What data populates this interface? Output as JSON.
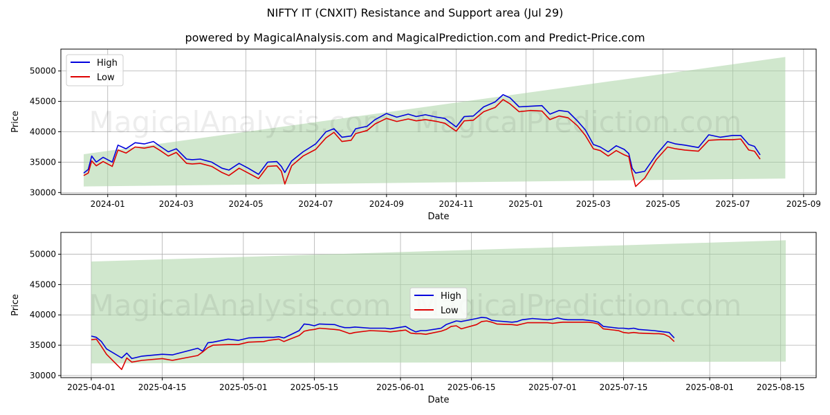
{
  "title": "NIFTY IT (CNXIT) Resistance and Support area (Jul 29)",
  "subtitle": "powered by MagicalAnalysis.com and MagicalPrediction.com and Predict-Price.com",
  "watermarks": [
    "MagicalAnalysis.com",
    "MagicalPrediction.com"
  ],
  "colors": {
    "high": "#0000dd",
    "low": "#dd0000",
    "band": "#a9d3a4",
    "grid": "#b0b0b0"
  },
  "chart_data": [
    {
      "type": "line",
      "xlabel": "Date",
      "ylabel": "Price",
      "xlim": [
        "2023-11-21",
        "2025-09-12"
      ],
      "ylim": [
        29700,
        53600
      ],
      "grid": true,
      "legend_placement": "upper left",
      "xticks": [
        "2024-01",
        "2024-03",
        "2024-05",
        "2024-07",
        "2024-09",
        "2024-11",
        "2025-01",
        "2025-03",
        "2025-05",
        "2025-07",
        "2025-09"
      ],
      "yticks": [
        30000,
        35000,
        40000,
        45000,
        50000
      ],
      "band": {
        "x": [
          "2023-12-11",
          "2025-08-16"
        ],
        "upper": [
          36300,
          52300
        ],
        "lower": [
          31000,
          32300
        ]
      },
      "series": [
        {
          "name": "High",
          "x": [
            "2023-12-11",
            "2023-12-15",
            "2023-12-18",
            "2023-12-22",
            "2023-12-28",
            "2024-01-05",
            "2024-01-10",
            "2024-01-17",
            "2024-01-25",
            "2024-02-02",
            "2024-02-10",
            "2024-02-16",
            "2024-02-23",
            "2024-03-01",
            "2024-03-10",
            "2024-03-15",
            "2024-03-22",
            "2024-04-01",
            "2024-04-10",
            "2024-04-16",
            "2024-04-25",
            "2024-05-03",
            "2024-05-12",
            "2024-05-20",
            "2024-05-28",
            "2024-06-01",
            "2024-06-04",
            "2024-06-10",
            "2024-06-20",
            "2024-07-01",
            "2024-07-10",
            "2024-07-17",
            "2024-07-24",
            "2024-08-01",
            "2024-08-05",
            "2024-08-15",
            "2024-08-22",
            "2024-09-01",
            "2024-09-10",
            "2024-09-20",
            "2024-09-27",
            "2024-10-05",
            "2024-10-15",
            "2024-10-22",
            "2024-11-01",
            "2024-11-08",
            "2024-11-16",
            "2024-11-25",
            "2024-12-05",
            "2024-12-12",
            "2024-12-18",
            "2024-12-26",
            "2025-01-05",
            "2025-01-15",
            "2025-01-22",
            "2025-01-30",
            "2025-02-07",
            "2025-02-15",
            "2025-02-22",
            "2025-03-01",
            "2025-03-07",
            "2025-03-14",
            "2025-03-21",
            "2025-03-28",
            "2025-04-01",
            "2025-04-04",
            "2025-04-07",
            "2025-04-15",
            "2025-04-25",
            "2025-05-05",
            "2025-05-12",
            "2025-05-20",
            "2025-06-01",
            "2025-06-10",
            "2025-06-20",
            "2025-07-01",
            "2025-07-08",
            "2025-07-15",
            "2025-07-20",
            "2025-07-25"
          ],
          "values": [
            33200,
            33800,
            36000,
            35000,
            35800,
            35000,
            37800,
            37200,
            38200,
            38000,
            38400,
            37600,
            36700,
            37200,
            35500,
            35400,
            35500,
            35000,
            34000,
            33700,
            34800,
            34000,
            33000,
            35000,
            35100,
            34300,
            33300,
            35200,
            36700,
            38000,
            40000,
            40500,
            39100,
            39300,
            40500,
            40900,
            42000,
            43000,
            42400,
            42900,
            42500,
            42800,
            42400,
            42200,
            40800,
            42500,
            42600,
            44100,
            44900,
            46100,
            45600,
            44100,
            44200,
            44300,
            42900,
            43500,
            43300,
            41800,
            40300,
            37900,
            37500,
            36700,
            37700,
            37100,
            36400,
            34000,
            33200,
            33500,
            36200,
            38400,
            38000,
            37800,
            37400,
            39500,
            39100,
            39400,
            39400,
            37900,
            37600,
            36200
          ]
        },
        {
          "name": "Low",
          "x": [
            "2023-12-11",
            "2023-12-15",
            "2023-12-18",
            "2023-12-22",
            "2023-12-28",
            "2024-01-05",
            "2024-01-10",
            "2024-01-17",
            "2024-01-25",
            "2024-02-02",
            "2024-02-10",
            "2024-02-16",
            "2024-02-23",
            "2024-03-01",
            "2024-03-10",
            "2024-03-15",
            "2024-03-22",
            "2024-04-01",
            "2024-04-10",
            "2024-04-16",
            "2024-04-25",
            "2024-05-03",
            "2024-05-12",
            "2024-05-20",
            "2024-05-28",
            "2024-06-01",
            "2024-06-04",
            "2024-06-10",
            "2024-06-20",
            "2024-07-01",
            "2024-07-10",
            "2024-07-17",
            "2024-07-24",
            "2024-08-01",
            "2024-08-05",
            "2024-08-15",
            "2024-08-22",
            "2024-09-01",
            "2024-09-10",
            "2024-09-20",
            "2024-09-27",
            "2024-10-05",
            "2024-10-15",
            "2024-10-22",
            "2024-11-01",
            "2024-11-08",
            "2024-11-16",
            "2024-11-25",
            "2024-12-05",
            "2024-12-12",
            "2024-12-18",
            "2024-12-26",
            "2025-01-05",
            "2025-01-15",
            "2025-01-22",
            "2025-01-30",
            "2025-02-07",
            "2025-02-15",
            "2025-02-22",
            "2025-03-01",
            "2025-03-07",
            "2025-03-14",
            "2025-03-21",
            "2025-03-28",
            "2025-04-01",
            "2025-04-04",
            "2025-04-07",
            "2025-04-15",
            "2025-04-25",
            "2025-05-05",
            "2025-05-12",
            "2025-05-20",
            "2025-06-01",
            "2025-06-10",
            "2025-06-20",
            "2025-07-01",
            "2025-07-08",
            "2025-07-15",
            "2025-07-20",
            "2025-07-25"
          ],
          "values": [
            32800,
            33200,
            35200,
            34400,
            35100,
            34300,
            37000,
            36500,
            37500,
            37300,
            37600,
            36900,
            36000,
            36600,
            34800,
            34700,
            34800,
            34300,
            33300,
            32800,
            34000,
            33200,
            32300,
            34300,
            34400,
            33500,
            31400,
            34400,
            36000,
            37100,
            39000,
            39900,
            38400,
            38600,
            39700,
            40200,
            41300,
            42200,
            41700,
            42100,
            41800,
            42000,
            41700,
            41400,
            40100,
            41800,
            41900,
            43300,
            44000,
            45300,
            44600,
            43300,
            43500,
            43400,
            42000,
            42600,
            42300,
            41000,
            39400,
            37200,
            36900,
            36000,
            36900,
            36200,
            35900,
            33200,
            31000,
            32400,
            35400,
            37500,
            37200,
            37000,
            36800,
            38600,
            38700,
            38700,
            38800,
            37000,
            36800,
            35500
          ]
        }
      ]
    },
    {
      "type": "line",
      "xlabel": "Date",
      "ylabel": "Price",
      "xlim": [
        "2025-03-26",
        "2025-08-22"
      ],
      "ylim": [
        29650,
        53600
      ],
      "grid": true,
      "legend_placement": "center",
      "xticks": [
        "2025-04-01",
        "2025-04-15",
        "2025-05-01",
        "2025-05-15",
        "2025-06-01",
        "2025-06-15",
        "2025-07-01",
        "2025-07-15",
        "2025-08-01",
        "2025-08-15"
      ],
      "yticks": [
        30000,
        35000,
        40000,
        45000,
        50000
      ],
      "band": {
        "x": [
          "2025-04-01",
          "2025-08-16"
        ],
        "upper": [
          48800,
          52300
        ],
        "lower": [
          32000,
          32300
        ]
      },
      "series": [
        {
          "name": "High",
          "x": [
            "2025-04-01",
            "2025-04-02",
            "2025-04-03",
            "2025-04-04",
            "2025-04-07",
            "2025-04-08",
            "2025-04-09",
            "2025-04-11",
            "2025-04-15",
            "2025-04-17",
            "2025-04-22",
            "2025-04-23",
            "2025-04-24",
            "2025-04-25",
            "2025-04-28",
            "2025-04-30",
            "2025-05-02",
            "2025-05-05",
            "2025-05-06",
            "2025-05-07",
            "2025-05-08",
            "2025-05-09",
            "2025-05-12",
            "2025-05-13",
            "2025-05-14",
            "2025-05-15",
            "2025-05-16",
            "2025-05-19",
            "2025-05-20",
            "2025-05-21",
            "2025-05-22",
            "2025-05-23",
            "2025-05-26",
            "2025-05-29",
            "2025-05-30",
            "2025-06-02",
            "2025-06-03",
            "2025-06-04",
            "2025-06-05",
            "2025-06-06",
            "2025-06-09",
            "2025-06-10",
            "2025-06-11",
            "2025-06-12",
            "2025-06-13",
            "2025-06-16",
            "2025-06-17",
            "2025-06-18",
            "2025-06-19",
            "2025-06-20",
            "2025-06-23",
            "2025-06-24",
            "2025-06-25",
            "2025-06-26",
            "2025-06-27",
            "2025-06-30",
            "2025-07-01",
            "2025-07-02",
            "2025-07-03",
            "2025-07-04",
            "2025-07-07",
            "2025-07-08",
            "2025-07-09",
            "2025-07-10",
            "2025-07-11",
            "2025-07-14",
            "2025-07-15",
            "2025-07-16",
            "2025-07-17",
            "2025-07-18",
            "2025-07-21",
            "2025-07-22",
            "2025-07-23",
            "2025-07-24",
            "2025-07-25"
          ],
          "values": [
            36500,
            36300,
            35600,
            34400,
            32900,
            33700,
            32800,
            33200,
            33500,
            33400,
            34500,
            34000,
            35400,
            35500,
            36000,
            35800,
            36200,
            36300,
            36300,
            36300,
            36400,
            36200,
            37400,
            38500,
            38400,
            38200,
            38500,
            38400,
            38100,
            37900,
            37900,
            38000,
            37800,
            37800,
            37700,
            38100,
            37600,
            37200,
            37400,
            37400,
            37800,
            38400,
            38700,
            39000,
            38900,
            39400,
            39600,
            39500,
            39100,
            39000,
            38800,
            38900,
            39200,
            39300,
            39400,
            39200,
            39300,
            39500,
            39300,
            39200,
            39200,
            39100,
            39000,
            38800,
            38100,
            37800,
            37800,
            37700,
            37800,
            37600,
            37400,
            37300,
            37200,
            37100,
            36200
          ]
        },
        {
          "name": "Low",
          "x": [
            "2025-04-01",
            "2025-04-02",
            "2025-04-03",
            "2025-04-04",
            "2025-04-07",
            "2025-04-08",
            "2025-04-09",
            "2025-04-11",
            "2025-04-15",
            "2025-04-17",
            "2025-04-22",
            "2025-04-23",
            "2025-04-24",
            "2025-04-25",
            "2025-04-28",
            "2025-04-30",
            "2025-05-02",
            "2025-05-05",
            "2025-05-06",
            "2025-05-07",
            "2025-05-08",
            "2025-05-09",
            "2025-05-12",
            "2025-05-13",
            "2025-05-14",
            "2025-05-15",
            "2025-05-16",
            "2025-05-19",
            "2025-05-20",
            "2025-05-21",
            "2025-05-22",
            "2025-05-23",
            "2025-05-26",
            "2025-05-29",
            "2025-05-30",
            "2025-06-02",
            "2025-06-03",
            "2025-06-04",
            "2025-06-05",
            "2025-06-06",
            "2025-06-09",
            "2025-06-10",
            "2025-06-11",
            "2025-06-12",
            "2025-06-13",
            "2025-06-16",
            "2025-06-17",
            "2025-06-18",
            "2025-06-19",
            "2025-06-20",
            "2025-06-23",
            "2025-06-24",
            "2025-06-25",
            "2025-06-26",
            "2025-06-27",
            "2025-06-30",
            "2025-07-01",
            "2025-07-02",
            "2025-07-03",
            "2025-07-04",
            "2025-07-07",
            "2025-07-08",
            "2025-07-09",
            "2025-07-10",
            "2025-07-11",
            "2025-07-14",
            "2025-07-15",
            "2025-07-16",
            "2025-07-17",
            "2025-07-18",
            "2025-07-21",
            "2025-07-22",
            "2025-07-23",
            "2025-07-24",
            "2025-07-25"
          ],
          "values": [
            35900,
            36000,
            34800,
            33500,
            31000,
            32900,
            32200,
            32500,
            32800,
            32500,
            33300,
            33900,
            34600,
            35000,
            35100,
            35100,
            35500,
            35600,
            35800,
            35900,
            36000,
            35600,
            36600,
            37300,
            37500,
            37600,
            37800,
            37600,
            37500,
            37200,
            36900,
            37100,
            37400,
            37300,
            37200,
            37500,
            37000,
            36900,
            36900,
            36800,
            37300,
            37600,
            38100,
            38200,
            37700,
            38400,
            38900,
            39000,
            38800,
            38500,
            38400,
            38300,
            38500,
            38700,
            38700,
            38700,
            38600,
            38700,
            38800,
            38800,
            38800,
            38800,
            38700,
            38500,
            37700,
            37400,
            37100,
            37000,
            37100,
            37000,
            36900,
            36900,
            36800,
            36400,
            35600
          ]
        }
      ]
    }
  ]
}
